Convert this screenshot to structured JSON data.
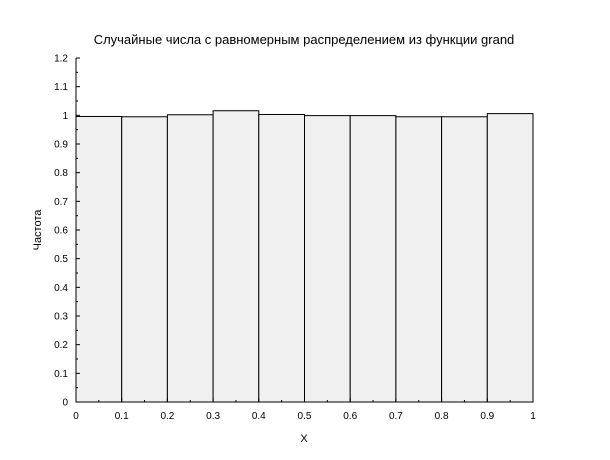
{
  "chart_data": {
    "type": "bar",
    "title": "Случайные числа с равномерным распределением из функции grand",
    "xlabel": "X",
    "ylabel": "Частота",
    "xlim": [
      0,
      1
    ],
    "ylim": [
      0,
      1.2
    ],
    "x_ticks": [
      "0",
      "0.1",
      "0.2",
      "0.3",
      "0.4",
      "0.5",
      "0.6",
      "0.7",
      "0.8",
      "0.9",
      "1"
    ],
    "y_ticks": [
      "0",
      "0.1",
      "0.2",
      "0.3",
      "0.4",
      "0.5",
      "0.6",
      "0.7",
      "0.8",
      "0.9",
      "1",
      "1.1",
      "1.2"
    ],
    "bins": [
      {
        "from": 0.0,
        "to": 0.1,
        "value": 0.996
      },
      {
        "from": 0.1,
        "to": 0.2,
        "value": 0.995
      },
      {
        "from": 0.2,
        "to": 0.3,
        "value": 1.002
      },
      {
        "from": 0.3,
        "to": 0.4,
        "value": 1.016
      },
      {
        "from": 0.4,
        "to": 0.5,
        "value": 1.003
      },
      {
        "from": 0.5,
        "to": 0.6,
        "value": 0.999
      },
      {
        "from": 0.6,
        "to": 0.7,
        "value": 0.999
      },
      {
        "from": 0.7,
        "to": 0.8,
        "value": 0.995
      },
      {
        "from": 0.8,
        "to": 0.9,
        "value": 0.995
      },
      {
        "from": 0.9,
        "to": 1.0,
        "value": 1.006
      }
    ],
    "grid": false,
    "colors": {
      "bar_fill": "#f0f0f0",
      "bar_stroke": "#000000",
      "background": "#ffffff"
    }
  }
}
